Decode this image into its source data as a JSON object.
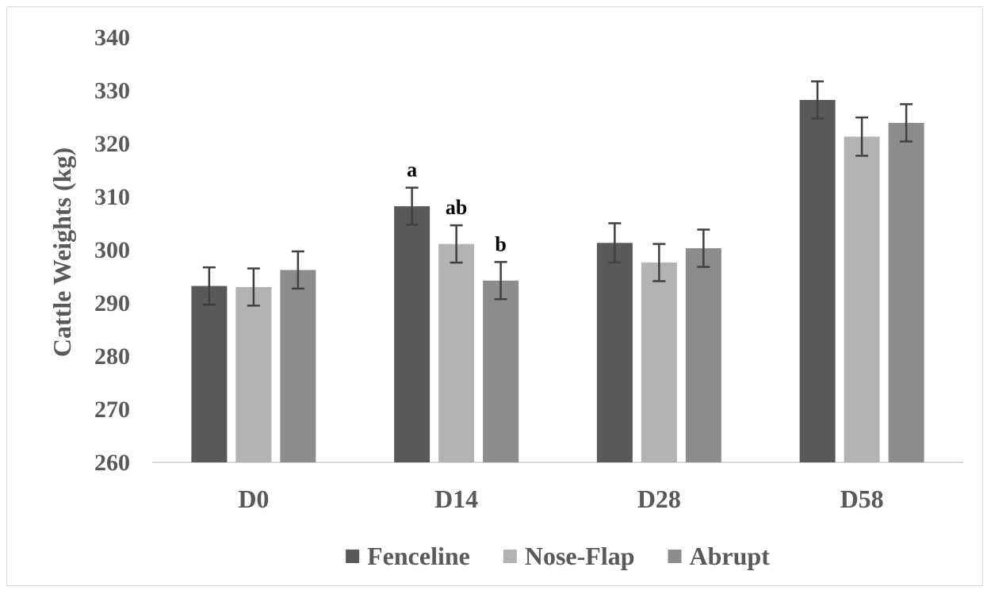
{
  "chart_data": {
    "type": "bar",
    "title": "",
    "xlabel": "",
    "ylabel": "Cattle Weights (kg)",
    "ylim": [
      260,
      340
    ],
    "yticks": [
      260,
      270,
      280,
      290,
      300,
      310,
      320,
      330,
      340
    ],
    "grid": false,
    "legend_position": "bottom",
    "categories": [
      "D0",
      "D14",
      "D28",
      "D58"
    ],
    "series": [
      {
        "name": "Fenceline",
        "color": "#595959",
        "values": [
          293.2,
          308.2,
          301.3,
          328.2
        ],
        "error": [
          3.5,
          3.5,
          3.7,
          3.5
        ]
      },
      {
        "name": "Nose-Flap",
        "color": "#b3b3b3",
        "values": [
          293.0,
          301.1,
          297.6,
          321.3
        ],
        "error": [
          3.5,
          3.5,
          3.5,
          3.6
        ]
      },
      {
        "name": "Abrupt",
        "color": "#8c8c8c",
        "values": [
          296.2,
          294.2,
          300.3,
          323.9
        ],
        "error": [
          3.5,
          3.5,
          3.5,
          3.5
        ]
      }
    ],
    "annotations": [
      {
        "category": "D14",
        "series": "Fenceline",
        "text": "a"
      },
      {
        "category": "D14",
        "series": "Nose-Flap",
        "text": "ab"
      },
      {
        "category": "D14",
        "series": "Abrupt",
        "text": "b"
      }
    ]
  }
}
